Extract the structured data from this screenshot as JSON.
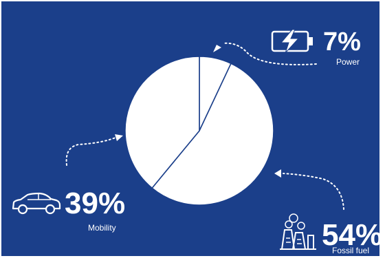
{
  "colors": {
    "background": "#1b3f8a",
    "slice_fill": "#ffffff",
    "slice_edge": "#1b3f8a",
    "text": "#ffffff"
  },
  "chart_data": {
    "type": "pie",
    "categories": [
      "Power",
      "Fossil fuel",
      "Mobility"
    ],
    "values": [
      7,
      54,
      39
    ],
    "data_labels": [
      "7%",
      "54%",
      "39%"
    ],
    "icons": [
      "battery-charging-icon",
      "factory-icon",
      "car-icon"
    ],
    "title": "",
    "legend": "none"
  }
}
